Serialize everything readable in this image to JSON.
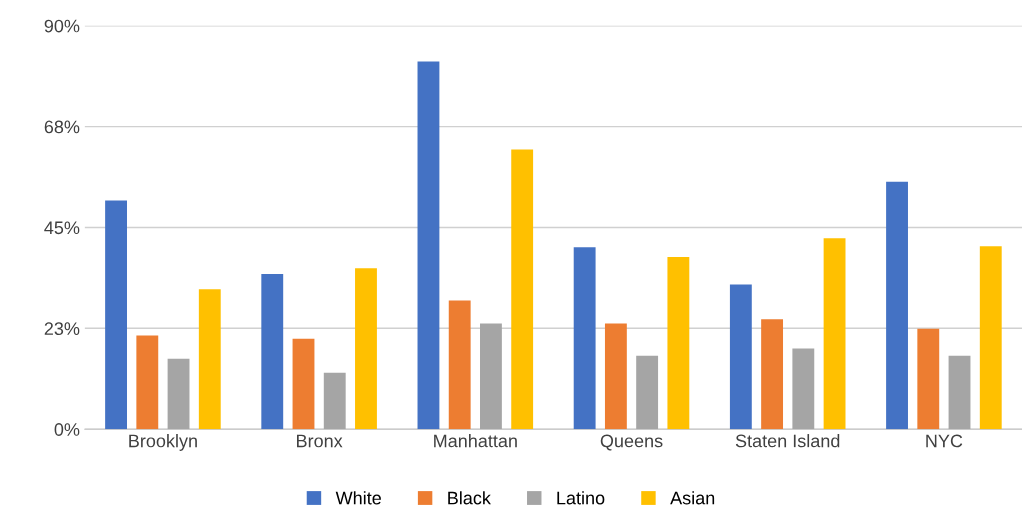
{
  "chart_data": {
    "type": "bar",
    "categories": [
      "Brooklyn",
      "Bronx",
      "Manhattan",
      "Queens",
      "Staten Island",
      "NYC"
    ],
    "series": [
      {
        "name": "White",
        "color": "#4472c4",
        "values": [
          51,
          34.6,
          82,
          40.6,
          32.3,
          55.2
        ]
      },
      {
        "name": "Black",
        "color": "#ed7d31",
        "values": [
          20.9,
          20.2,
          28.7,
          23.6,
          24.5,
          22.4
        ]
      },
      {
        "name": "Latino",
        "color": "#a5a5a5",
        "values": [
          15.7,
          12.6,
          23.6,
          16.4,
          18,
          16.4
        ]
      },
      {
        "name": "Asian",
        "color": "#ffc000",
        "values": [
          31.2,
          35.9,
          62.4,
          38.4,
          42.6,
          40.8
        ]
      }
    ],
    "ylim": [
      0,
      90
    ],
    "yticks": [
      {
        "value": 0,
        "label": "0%"
      },
      {
        "value": 22.5,
        "label": "23%"
      },
      {
        "value": 45,
        "label": "45%"
      },
      {
        "value": 67.5,
        "label": "68%"
      },
      {
        "value": 90,
        "label": "90%"
      }
    ],
    "grid": "y",
    "legend": "bottom"
  }
}
